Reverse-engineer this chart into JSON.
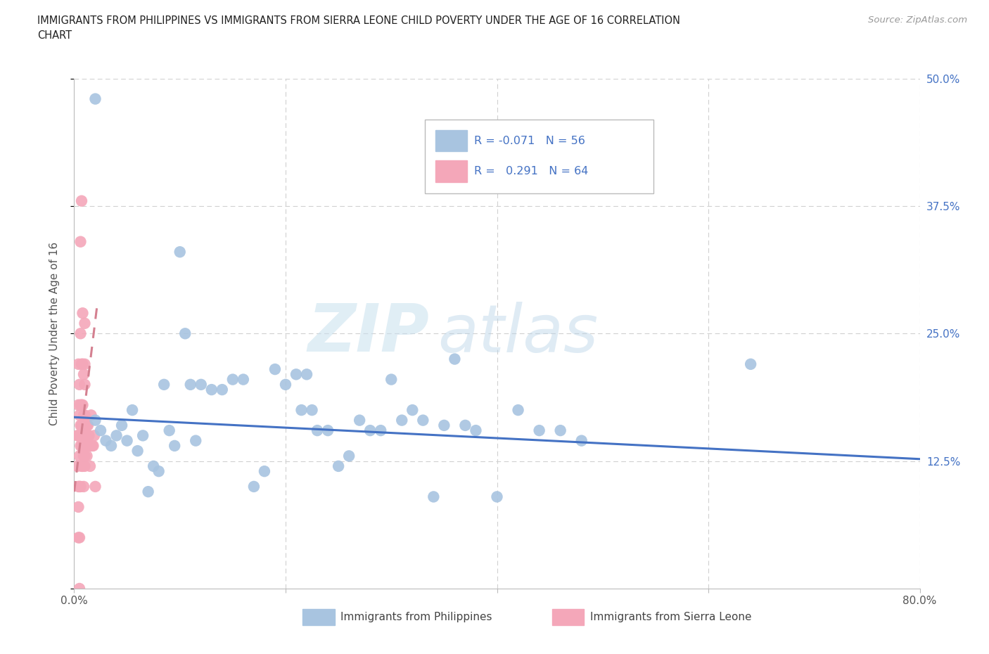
{
  "title_line1": "IMMIGRANTS FROM PHILIPPINES VS IMMIGRANTS FROM SIERRA LEONE CHILD POVERTY UNDER THE AGE OF 16 CORRELATION",
  "title_line2": "CHART",
  "source": "Source: ZipAtlas.com",
  "ylabel": "Child Poverty Under the Age of 16",
  "xlim": [
    0.0,
    0.8
  ],
  "ylim": [
    0.0,
    0.5
  ],
  "philippines_color": "#a8c4e0",
  "sierra_leone_color": "#f4a7b9",
  "philippines_line_color": "#4472c4",
  "sierra_leone_line_color": "#d48090",
  "grid_color": "#d0d0d0",
  "right_tick_color": "#4472c4",
  "watermark_zip": "ZIP",
  "watermark_atlas": "atlas",
  "legend_R_color": "#4472c4",
  "philippines_x": [
    0.02,
    0.025,
    0.03,
    0.035,
    0.04,
    0.045,
    0.05,
    0.055,
    0.06,
    0.065,
    0.07,
    0.075,
    0.08,
    0.085,
    0.09,
    0.095,
    0.1,
    0.105,
    0.11,
    0.115,
    0.12,
    0.13,
    0.14,
    0.15,
    0.16,
    0.17,
    0.18,
    0.19,
    0.2,
    0.21,
    0.215,
    0.22,
    0.225,
    0.23,
    0.24,
    0.25,
    0.26,
    0.27,
    0.28,
    0.29,
    0.3,
    0.31,
    0.32,
    0.33,
    0.34,
    0.35,
    0.36,
    0.37,
    0.38,
    0.4,
    0.42,
    0.44,
    0.46,
    0.48,
    0.64,
    0.02
  ],
  "philippines_y": [
    0.165,
    0.155,
    0.145,
    0.14,
    0.15,
    0.16,
    0.145,
    0.175,
    0.135,
    0.15,
    0.095,
    0.12,
    0.115,
    0.2,
    0.155,
    0.14,
    0.33,
    0.25,
    0.2,
    0.145,
    0.2,
    0.195,
    0.195,
    0.205,
    0.205,
    0.1,
    0.115,
    0.215,
    0.2,
    0.21,
    0.175,
    0.21,
    0.175,
    0.155,
    0.155,
    0.12,
    0.13,
    0.165,
    0.155,
    0.155,
    0.205,
    0.165,
    0.175,
    0.165,
    0.09,
    0.16,
    0.225,
    0.16,
    0.155,
    0.09,
    0.175,
    0.155,
    0.155,
    0.145,
    0.22,
    0.48
  ],
  "sierra_leone_x": [
    0.003,
    0.003,
    0.004,
    0.004,
    0.004,
    0.004,
    0.004,
    0.004,
    0.005,
    0.005,
    0.005,
    0.005,
    0.005,
    0.005,
    0.005,
    0.006,
    0.006,
    0.006,
    0.006,
    0.006,
    0.006,
    0.007,
    0.007,
    0.007,
    0.007,
    0.007,
    0.007,
    0.008,
    0.008,
    0.008,
    0.008,
    0.008,
    0.008,
    0.009,
    0.009,
    0.009,
    0.009,
    0.009,
    0.01,
    0.01,
    0.01,
    0.01,
    0.01,
    0.01,
    0.01,
    0.01,
    0.01,
    0.01,
    0.011,
    0.011,
    0.012,
    0.012,
    0.013,
    0.013,
    0.013,
    0.014,
    0.014,
    0.015,
    0.016,
    0.016,
    0.017,
    0.018,
    0.019,
    0.02
  ],
  "sierra_leone_y": [
    0.12,
    0.15,
    0.05,
    0.08,
    0.1,
    0.15,
    0.18,
    0.22,
    0.0,
    0.05,
    0.1,
    0.13,
    0.15,
    0.17,
    0.2,
    0.1,
    0.14,
    0.16,
    0.18,
    0.25,
    0.34,
    0.12,
    0.14,
    0.16,
    0.18,
    0.22,
    0.38,
    0.12,
    0.14,
    0.16,
    0.18,
    0.22,
    0.27,
    0.1,
    0.13,
    0.15,
    0.17,
    0.21,
    0.12,
    0.13,
    0.14,
    0.15,
    0.16,
    0.17,
    0.2,
    0.22,
    0.26,
    0.13,
    0.14,
    0.16,
    0.13,
    0.16,
    0.14,
    0.15,
    0.16,
    0.14,
    0.15,
    0.12,
    0.14,
    0.17,
    0.14,
    0.14,
    0.15,
    0.1
  ],
  "ph_line_x0": 0.0,
  "ph_line_x1": 0.8,
  "ph_line_y0": 0.168,
  "ph_line_y1": 0.127,
  "sl_line_x0": 0.0,
  "sl_line_x1": 0.022,
  "sl_line_y0": 0.095,
  "sl_line_y1": 0.28
}
